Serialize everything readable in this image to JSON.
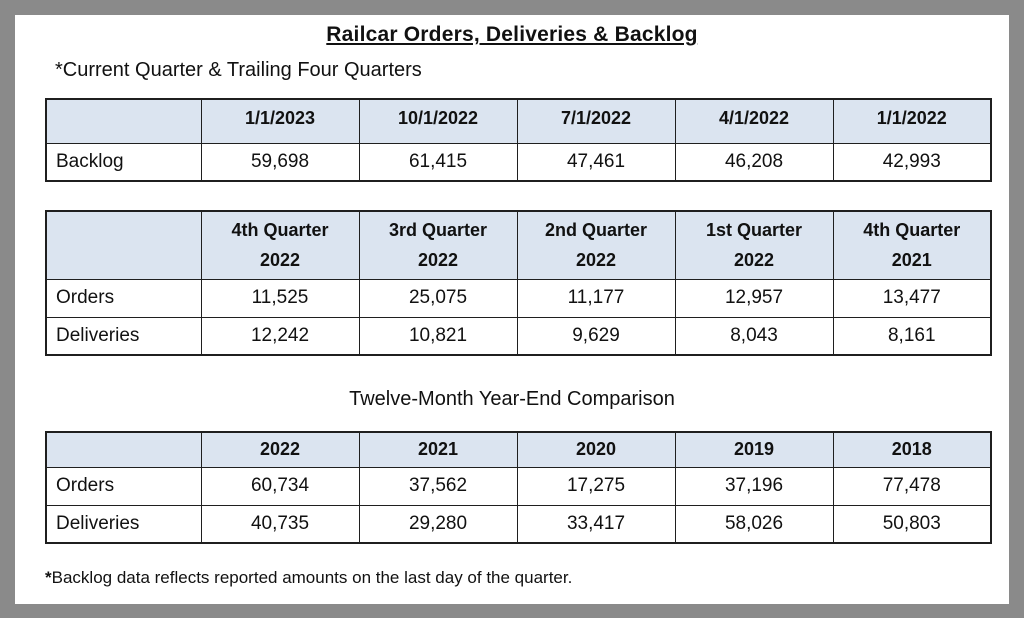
{
  "page": {
    "title": "Railcar Orders, Deliveries & Backlog",
    "subtitle": "*Current Quarter & Trailing Four Quarters",
    "section_heading": "Twelve-Month Year-End Comparison",
    "footnote_marker": "*",
    "footnote_text": "Backlog data reflects reported amounts on the last day of the quarter."
  },
  "colors": {
    "frame_gray": "#8a8a8a",
    "header_bg": "#dbe4f0",
    "border": "#1f1f1f"
  },
  "backlog_table": {
    "columns": [
      "1/1/2023",
      "10/1/2022",
      "7/1/2022",
      "4/1/2022",
      "1/1/2022"
    ],
    "row_label": "Backlog",
    "values": [
      "59,698",
      "61,415",
      "47,461",
      "46,208",
      "42,993"
    ]
  },
  "quarterly_table": {
    "columns": [
      {
        "line1": "4th Quarter",
        "line2": "2022"
      },
      {
        "line1": "3rd Quarter",
        "line2": "2022"
      },
      {
        "line1": "2nd Quarter",
        "line2": "2022"
      },
      {
        "line1": "1st Quarter",
        "line2": "2022"
      },
      {
        "line1": "4th Quarter",
        "line2": "2021"
      }
    ],
    "rows": [
      {
        "label": "Orders",
        "values": [
          "11,525",
          "25,075",
          "11,177",
          "12,957",
          "13,477"
        ]
      },
      {
        "label": "Deliveries",
        "values": [
          "12,242",
          "10,821",
          "9,629",
          "8,043",
          "8,161"
        ]
      }
    ]
  },
  "yearend_table": {
    "columns": [
      "2022",
      "2021",
      "2020",
      "2019",
      "2018"
    ],
    "rows": [
      {
        "label": "Orders",
        "values": [
          "60,734",
          "37,562",
          "17,275",
          "37,196",
          "77,478"
        ]
      },
      {
        "label": "Deliveries",
        "values": [
          "40,735",
          "29,280",
          "33,417",
          "58,026",
          "50,803"
        ]
      }
    ]
  }
}
